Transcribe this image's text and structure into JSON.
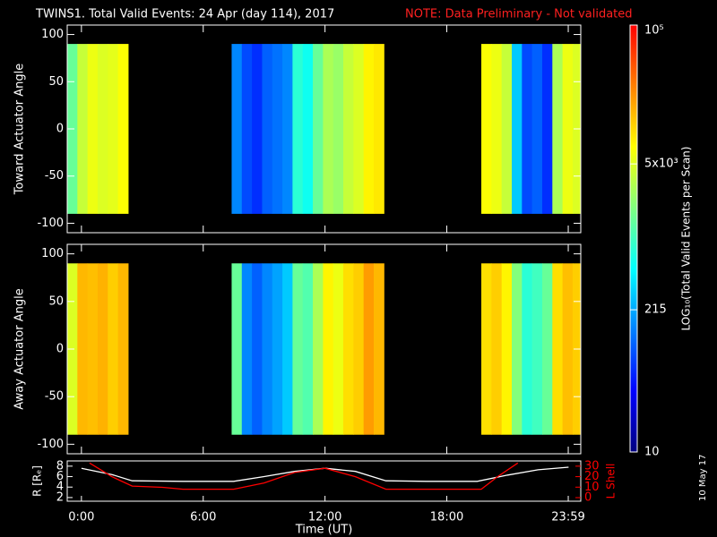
{
  "header": {
    "title": "TWINS1. Total Valid Events: 24 Apr (day 114), 2017",
    "note": "NOTE: Data Preliminary - Not validated"
  },
  "side_label": "10 May 17",
  "chart_data": [
    {
      "type": "heatmap",
      "ylabel": "Toward Actuator Angle",
      "xlim": [
        -0.7,
        24.6
      ],
      "ylim": [
        -110,
        110
      ],
      "yticks": [
        -100,
        -50,
        0,
        50,
        100
      ],
      "angles": [
        -90,
        90
      ],
      "colormap": [
        "#000080",
        "#0000ff",
        "#0080ff",
        "#00ffff",
        "#80ff80",
        "#ffff00",
        "#ff8000",
        "#ff0000"
      ],
      "colorbar": {
        "label": "LOG₁₀(Total Valid Events per Scan)",
        "lim": [
          10,
          100000
        ],
        "log": true,
        "ticks": [
          10,
          215,
          {
            "value": 5000,
            "label": "5x10³"
          },
          {
            "value": 100000,
            "label": "10⁵"
          }
        ]
      },
      "blocks": [
        {
          "bins": [
            -0.7,
            -0.2,
            0.3,
            0.8,
            1.3,
            1.8,
            2.3
          ],
          "values": [
            1500,
            4000,
            6000,
            5000,
            5500,
            7000
          ]
        },
        {
          "bins": [
            7.4,
            7.9,
            8.4,
            8.9,
            9.4,
            9.9,
            10.4,
            10.9,
            11.4,
            11.9,
            12.4,
            12.9,
            13.4,
            13.9,
            14.4,
            14.9
          ],
          "values": [
            150,
            80,
            60,
            100,
            120,
            150,
            800,
            600,
            1500,
            3000,
            2500,
            4000,
            5000,
            8000,
            9000
          ]
        },
        {
          "bins": [
            19.7,
            20.2,
            20.7,
            21.2,
            21.7,
            22.2,
            22.7,
            23.2,
            23.7,
            24.2,
            24.6
          ],
          "values": [
            7000,
            6000,
            4000,
            300,
            80,
            100,
            60,
            3000,
            6000,
            5000
          ]
        }
      ]
    },
    {
      "type": "heatmap",
      "ylabel": "Away Actuator Angle",
      "xlim": [
        -0.7,
        24.6
      ],
      "ylim": [
        -110,
        110
      ],
      "yticks": [
        -100,
        -50,
        0,
        50,
        100
      ],
      "angles": [
        -90,
        90
      ],
      "blocks": [
        {
          "bins": [
            -0.7,
            -0.2,
            0.3,
            0.8,
            1.3,
            1.8,
            2.3
          ],
          "values": [
            5000,
            15000,
            14000,
            16000,
            12000,
            15000
          ]
        },
        {
          "bins": [
            7.4,
            7.9,
            8.4,
            8.9,
            9.4,
            9.9,
            10.4,
            10.9,
            11.4,
            11.9,
            12.4,
            12.9,
            13.4,
            13.9,
            14.4,
            14.9
          ],
          "values": [
            1500,
            150,
            100,
            150,
            200,
            300,
            1500,
            1200,
            3000,
            8000,
            6000,
            10000,
            12000,
            20000,
            15000
          ]
        },
        {
          "bins": [
            19.7,
            20.2,
            20.7,
            21.2,
            21.7,
            22.2,
            22.7,
            23.2,
            23.7,
            24.2,
            24.6
          ],
          "values": [
            10000,
            12000,
            8000,
            2000,
            800,
            1000,
            1500,
            10000,
            14000,
            12000
          ]
        }
      ]
    },
    {
      "type": "line",
      "xlabel": "Time (UT)",
      "ylabel": "R [Rₑ]",
      "y2label": "L Shell",
      "y2color": "#ff0000",
      "xlim": [
        -0.7,
        24.6
      ],
      "xticks": [
        {
          "value": 0,
          "label": "0:00"
        },
        {
          "value": 6,
          "label": "6:00"
        },
        {
          "value": 12,
          "label": "12:00"
        },
        {
          "value": 18,
          "label": "18:00"
        },
        {
          "value": 23.983,
          "label": "23:59"
        }
      ],
      "ylim": [
        1.3,
        9
      ],
      "yticks": [
        2,
        4,
        6,
        8
      ],
      "y2lim": [
        -3.4,
        35
      ],
      "y2ticks": [
        0,
        10,
        20,
        30
      ],
      "series": [
        {
          "color": "#ffffff",
          "x": [
            0,
            1.5,
            2.5,
            5,
            7.5,
            9,
            10.5,
            12,
            13.5,
            15,
            17,
            19.5,
            21,
            22.5,
            24
          ],
          "values": [
            7.6,
            6.4,
            5.2,
            5.1,
            5.1,
            6.0,
            7.0,
            7.6,
            7.0,
            5.2,
            5.1,
            5.1,
            6.3,
            7.3,
            7.8
          ]
        },
        {
          "color": "#ff0000",
          "axis": "y2",
          "x": [
            0.4,
            1.5,
            2.5,
            4,
            5,
            7.5,
            9,
            10.5,
            12,
            13.5,
            15,
            17,
            19.7,
            20.5,
            21.5
          ],
          "values": [
            33,
            20,
            11,
            9.8,
            8,
            8,
            14,
            24,
            28,
            20,
            8,
            8,
            8,
            20,
            33
          ]
        }
      ]
    }
  ]
}
